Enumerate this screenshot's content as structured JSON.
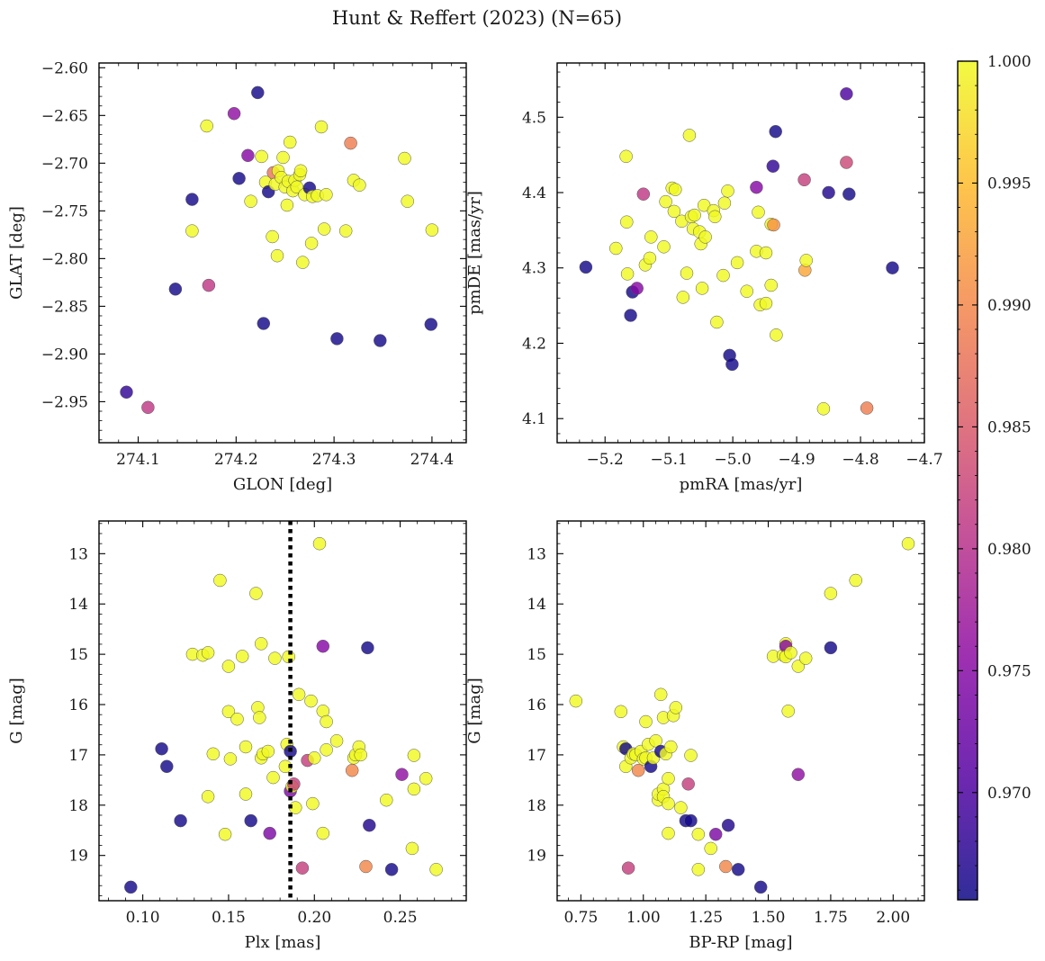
{
  "title": "Hunt & Reffert (2023) (N=65)",
  "colormap": {
    "name": "plasma",
    "min": 0.9656,
    "max": 1.0,
    "ticks": [
      "0.970",
      "0.975",
      "0.980",
      "0.985",
      "0.990",
      "0.995",
      "1.000"
    ],
    "tick_values": [
      0.97,
      0.975,
      0.98,
      0.985,
      0.99,
      0.995,
      1.0
    ]
  },
  "chart_data": [
    {
      "type": "scatter",
      "xlabel": "GLON [deg]",
      "ylabel": "GLAT [deg]",
      "xlim": [
        274.06,
        274.435
      ],
      "ylim": [
        -2.993,
        -2.595
      ],
      "xticks": [
        274.1,
        274.2,
        274.3,
        274.4
      ],
      "xtick_labels": [
        "274.1",
        "274.2",
        "274.3",
        "274.4"
      ],
      "yticks": [
        -2.6,
        -2.65,
        -2.7,
        -2.75,
        -2.8,
        -2.85,
        -2.9,
        -2.95
      ],
      "ytick_labels": [
        "−2.60",
        "−2.65",
        "−2.70",
        "−2.75",
        "−2.80",
        "−2.85",
        "−2.90",
        "−2.95"
      ],
      "points": [
        [
          274.088,
          -2.94,
          0.968
        ],
        [
          274.11,
          -2.956,
          0.981
        ],
        [
          274.138,
          -2.832,
          0.966
        ],
        [
          274.155,
          -2.738,
          0.966
        ],
        [
          274.155,
          -2.771,
          1.0
        ],
        [
          274.17,
          -2.661,
          1.0
        ],
        [
          274.172,
          -2.828,
          0.981
        ],
        [
          274.198,
          -2.648,
          0.976
        ],
        [
          274.203,
          -2.716,
          0.966
        ],
        [
          274.212,
          -2.692,
          0.975
        ],
        [
          274.215,
          -2.74,
          1.0
        ],
        [
          274.222,
          -2.626,
          0.966
        ],
        [
          274.226,
          -2.693,
          1.0
        ],
        [
          274.228,
          -2.868,
          0.966
        ],
        [
          274.23,
          -2.72,
          1.0
        ],
        [
          274.233,
          -2.73,
          0.966
        ],
        [
          274.237,
          -2.777,
          1.0
        ],
        [
          274.238,
          -2.71,
          0.988
        ],
        [
          274.24,
          -2.722,
          1.0
        ],
        [
          274.242,
          -2.797,
          1.0
        ],
        [
          274.243,
          -2.708,
          1.0
        ],
        [
          274.246,
          -2.715,
          1.0
        ],
        [
          274.248,
          -2.694,
          1.0
        ],
        [
          274.25,
          -2.725,
          1.0
        ],
        [
          274.252,
          -2.744,
          1.0
        ],
        [
          274.253,
          -2.719,
          1.0
        ],
        [
          274.255,
          -2.678,
          1.0
        ],
        [
          274.258,
          -2.729,
          1.0
        ],
        [
          274.26,
          -2.718,
          1.0
        ],
        [
          274.262,
          -2.725,
          1.0
        ],
        [
          274.265,
          -2.712,
          1.0
        ],
        [
          274.266,
          -2.708,
          1.0
        ],
        [
          274.268,
          -2.804,
          1.0
        ],
        [
          274.27,
          -2.733,
          1.0
        ],
        [
          274.275,
          -2.726,
          0.966
        ],
        [
          274.277,
          -2.784,
          1.0
        ],
        [
          274.278,
          -2.735,
          1.0
        ],
        [
          274.283,
          -2.734,
          1.0
        ],
        [
          274.287,
          -2.662,
          1.0
        ],
        [
          274.29,
          -2.769,
          1.0
        ],
        [
          274.292,
          -2.733,
          1.0
        ],
        [
          274.303,
          -2.884,
          0.966
        ],
        [
          274.312,
          -2.771,
          1.0
        ],
        [
          274.317,
          -2.679,
          0.989
        ],
        [
          274.32,
          -2.718,
          1.0
        ],
        [
          274.326,
          -2.723,
          1.0
        ],
        [
          274.347,
          -2.886,
          0.966
        ],
        [
          274.372,
          -2.695,
          1.0
        ],
        [
          274.375,
          -2.74,
          1.0
        ],
        [
          274.399,
          -2.869,
          0.966
        ],
        [
          274.4,
          -2.77,
          1.0
        ]
      ]
    },
    {
      "type": "scatter",
      "xlabel": "pmRA [mas/yr]",
      "ylabel": "pmDE [mas/yr]",
      "xlim": [
        -5.275,
        -4.7
      ],
      "ylim": [
        4.068,
        4.572
      ],
      "xticks": [
        -5.2,
        -5.1,
        -5.0,
        -4.9,
        -4.8,
        -4.7
      ],
      "xtick_labels": [
        "−5.2",
        "−5.1",
        "−5.0",
        "−4.9",
        "−4.8",
        "−4.7"
      ],
      "yticks": [
        4.1,
        4.2,
        4.3,
        4.4,
        4.5
      ],
      "ytick_labels": [
        "4.1",
        "4.2",
        "4.3",
        "4.4",
        "4.5"
      ],
      "points": [
        [
          -5.23,
          4.301,
          0.966
        ],
        [
          -5.183,
          4.326,
          1.0
        ],
        [
          -5.167,
          4.448,
          1.0
        ],
        [
          -5.166,
          4.361,
          1.0
        ],
        [
          -5.165,
          4.292,
          1.0
        ],
        [
          -5.16,
          4.237,
          0.966
        ],
        [
          -5.157,
          4.268,
          0.966
        ],
        [
          -5.15,
          4.273,
          0.975
        ],
        [
          -5.14,
          4.398,
          0.981
        ],
        [
          -5.137,
          4.304,
          1.0
        ],
        [
          -5.13,
          4.313,
          1.0
        ],
        [
          -5.128,
          4.341,
          1.0
        ],
        [
          -5.108,
          4.328,
          1.0
        ],
        [
          -5.105,
          4.388,
          1.0
        ],
        [
          -5.095,
          4.406,
          1.0
        ],
        [
          -5.092,
          4.375,
          1.0
        ],
        [
          -5.09,
          4.404,
          1.0
        ],
        [
          -5.08,
          4.362,
          1.0
        ],
        [
          -5.078,
          4.261,
          1.0
        ],
        [
          -5.072,
          4.293,
          1.0
        ],
        [
          -5.068,
          4.476,
          1.0
        ],
        [
          -5.065,
          4.368,
          1.0
        ],
        [
          -5.062,
          4.352,
          1.0
        ],
        [
          -5.06,
          4.37,
          1.0
        ],
        [
          -5.052,
          4.348,
          1.0
        ],
        [
          -5.05,
          4.332,
          1.0
        ],
        [
          -5.048,
          4.273,
          1.0
        ],
        [
          -5.045,
          4.383,
          1.0
        ],
        [
          -5.043,
          4.341,
          1.0
        ],
        [
          -5.03,
          4.376,
          1.0
        ],
        [
          -5.028,
          4.368,
          1.0
        ],
        [
          -5.025,
          4.228,
          1.0
        ],
        [
          -5.015,
          4.29,
          1.0
        ],
        [
          -5.013,
          4.386,
          1.0
        ],
        [
          -5.008,
          4.402,
          1.0
        ],
        [
          -5.005,
          4.184,
          0.966
        ],
        [
          -5.001,
          4.172,
          0.966
        ],
        [
          -4.993,
          4.307,
          1.0
        ],
        [
          -4.978,
          4.269,
          1.0
        ],
        [
          -4.963,
          4.322,
          1.0
        ],
        [
          -4.963,
          4.407,
          0.975
        ],
        [
          -4.96,
          4.374,
          1.0
        ],
        [
          -4.957,
          4.251,
          1.0
        ],
        [
          -4.948,
          4.253,
          1.0
        ],
        [
          -4.948,
          4.32,
          1.0
        ],
        [
          -4.94,
          4.277,
          1.0
        ],
        [
          -4.94,
          4.358,
          1.0
        ],
        [
          -4.937,
          4.435,
          0.968
        ],
        [
          -4.936,
          4.357,
          0.991
        ],
        [
          -4.933,
          4.481,
          0.966
        ],
        [
          -4.932,
          4.211,
          1.0
        ],
        [
          -4.888,
          4.417,
          0.982
        ],
        [
          -4.887,
          4.297,
          0.993
        ],
        [
          -4.885,
          4.31,
          1.0
        ],
        [
          -4.85,
          4.4,
          0.967
        ],
        [
          -4.858,
          4.113,
          1.0
        ],
        [
          -4.822,
          4.531,
          0.97
        ],
        [
          -4.822,
          4.44,
          0.983
        ],
        [
          -4.818,
          4.398,
          0.966
        ],
        [
          -4.79,
          4.114,
          0.989
        ],
        [
          -4.75,
          4.3,
          0.966
        ]
      ]
    },
    {
      "type": "scatter",
      "xlabel": "Plx [mas]",
      "ylabel": "G [mag]",
      "xlim": [
        0.0745,
        0.2885
      ],
      "ylim": [
        19.9,
        12.35
      ],
      "y_inverted": true,
      "xticks": [
        0.1,
        0.15,
        0.2,
        0.25
      ],
      "xtick_labels": [
        "0.10",
        "0.15",
        "0.20",
        "0.25"
      ],
      "yticks": [
        13,
        14,
        15,
        16,
        17,
        18,
        19
      ],
      "ytick_labels": [
        "13",
        "14",
        "15",
        "16",
        "17",
        "18",
        "19"
      ],
      "reference_line": {
        "axis": "x",
        "value": 0.186,
        "style": "dotted",
        "color": "#000000"
      },
      "points": [
        [
          0.093,
          19.63,
          0.966
        ],
        [
          0.111,
          16.88,
          0.966
        ],
        [
          0.114,
          17.23,
          0.966
        ],
        [
          0.122,
          18.31,
          0.966
        ],
        [
          0.129,
          15.0,
          1.0
        ],
        [
          0.135,
          15.02,
          1.0
        ],
        [
          0.138,
          14.97,
          1.0
        ],
        [
          0.138,
          17.83,
          1.0
        ],
        [
          0.141,
          16.98,
          1.0
        ],
        [
          0.145,
          13.53,
          1.0
        ],
        [
          0.148,
          18.58,
          1.0
        ],
        [
          0.15,
          16.14,
          1.0
        ],
        [
          0.15,
          15.24,
          1.0
        ],
        [
          0.151,
          17.08,
          1.0
        ],
        [
          0.155,
          16.29,
          1.0
        ],
        [
          0.158,
          15.04,
          1.0
        ],
        [
          0.16,
          16.84,
          1.0
        ],
        [
          0.16,
          17.78,
          1.0
        ],
        [
          0.163,
          18.31,
          0.966
        ],
        [
          0.166,
          13.79,
          1.0
        ],
        [
          0.167,
          16.06,
          1.0
        ],
        [
          0.168,
          16.26,
          1.0
        ],
        [
          0.169,
          14.79,
          1.0
        ],
        [
          0.169,
          17.06,
          1.0
        ],
        [
          0.17,
          16.98,
          1.0
        ],
        [
          0.173,
          16.93,
          1.0
        ],
        [
          0.174,
          18.56,
          0.974
        ],
        [
          0.176,
          17.45,
          1.0
        ],
        [
          0.177,
          15.08,
          1.0
        ],
        [
          0.183,
          17.23,
          1.0
        ],
        [
          0.184,
          16.79,
          1.0
        ],
        [
          0.185,
          15.05,
          1.0
        ],
        [
          0.186,
          17.72,
          0.974
        ],
        [
          0.186,
          16.93,
          0.966
        ],
        [
          0.187,
          17.63,
          1.0
        ],
        [
          0.188,
          17.58,
          0.982
        ],
        [
          0.189,
          18.05,
          1.0
        ],
        [
          0.191,
          15.8,
          1.0
        ],
        [
          0.193,
          19.25,
          0.982
        ],
        [
          0.196,
          17.11,
          0.982
        ],
        [
          0.198,
          15.93,
          1.0
        ],
        [
          0.199,
          17.97,
          1.0
        ],
        [
          0.2,
          17.06,
          1.0
        ],
        [
          0.203,
          12.8,
          1.0
        ],
        [
          0.205,
          14.84,
          0.975
        ],
        [
          0.205,
          16.13,
          1.0
        ],
        [
          0.205,
          18.56,
          1.0
        ],
        [
          0.207,
          16.34,
          1.0
        ],
        [
          0.207,
          16.9,
          1.0
        ],
        [
          0.213,
          16.72,
          1.0
        ],
        [
          0.222,
          17.31,
          0.99
        ],
        [
          0.223,
          17.06,
          1.0
        ],
        [
          0.224,
          17.0,
          1.0
        ],
        [
          0.226,
          16.84,
          1.0
        ],
        [
          0.227,
          17.0,
          1.0
        ],
        [
          0.23,
          19.22,
          0.99
        ],
        [
          0.231,
          14.87,
          0.966
        ],
        [
          0.232,
          18.4,
          0.967
        ],
        [
          0.242,
          17.9,
          1.0
        ],
        [
          0.245,
          19.28,
          0.966
        ],
        [
          0.251,
          17.39,
          0.976
        ],
        [
          0.257,
          18.86,
          1.0
        ],
        [
          0.258,
          17.01,
          1.0
        ],
        [
          0.258,
          17.68,
          1.0
        ],
        [
          0.265,
          17.47,
          1.0
        ],
        [
          0.271,
          19.28,
          1.0
        ]
      ]
    },
    {
      "type": "scatter",
      "xlabel": "BP-RP [mag]",
      "ylabel": "G [mag]",
      "xlim": [
        0.655,
        2.125
      ],
      "ylim": [
        19.9,
        12.35
      ],
      "y_inverted": true,
      "xticks": [
        0.75,
        1.0,
        1.25,
        1.5,
        1.75,
        2.0
      ],
      "xtick_labels": [
        "0.75",
        "1.00",
        "1.25",
        "1.50",
        "1.75",
        "2.00"
      ],
      "yticks": [
        13,
        14,
        15,
        16,
        17,
        18,
        19
      ],
      "ytick_labels": [
        "13",
        "14",
        "15",
        "16",
        "17",
        "18",
        "19"
      ],
      "points": [
        [
          0.73,
          15.93,
          1.0
        ],
        [
          0.91,
          16.14,
          1.0
        ],
        [
          0.92,
          16.84,
          1.0
        ],
        [
          0.93,
          16.88,
          0.966
        ],
        [
          0.93,
          17.23,
          1.0
        ],
        [
          0.94,
          19.25,
          0.982
        ],
        [
          0.95,
          17.06,
          1.0
        ],
        [
          0.96,
          16.98,
          1.0
        ],
        [
          0.97,
          17.0,
          1.0
        ],
        [
          0.98,
          17.31,
          0.99
        ],
        [
          0.99,
          16.93,
          1.0
        ],
        [
          1.0,
          17.08,
          1.0
        ],
        [
          1.01,
          16.34,
          1.0
        ],
        [
          1.01,
          17.06,
          1.0
        ],
        [
          1.02,
          16.79,
          1.0
        ],
        [
          1.03,
          17.23,
          0.966
        ],
        [
          1.04,
          17.06,
          1.0
        ],
        [
          1.05,
          16.72,
          1.0
        ],
        [
          1.06,
          17.9,
          1.0
        ],
        [
          1.06,
          17.78,
          1.0
        ],
        [
          1.07,
          15.8,
          1.0
        ],
        [
          1.07,
          16.93,
          0.966
        ],
        [
          1.08,
          16.26,
          1.0
        ],
        [
          1.08,
          17.68,
          1.0
        ],
        [
          1.08,
          17.83,
          1.0
        ],
        [
          1.09,
          16.98,
          1.0
        ],
        [
          1.1,
          17.47,
          1.0
        ],
        [
          1.1,
          17.97,
          1.0
        ],
        [
          1.1,
          18.56,
          1.0
        ],
        [
          1.11,
          16.84,
          1.0
        ],
        [
          1.12,
          16.22,
          1.0
        ],
        [
          1.13,
          16.06,
          1.0
        ],
        [
          1.15,
          18.05,
          1.0
        ],
        [
          1.17,
          18.31,
          0.966
        ],
        [
          1.18,
          17.58,
          0.982
        ],
        [
          1.19,
          17.01,
          1.0
        ],
        [
          1.19,
          18.31,
          0.966
        ],
        [
          1.22,
          18.58,
          1.0
        ],
        [
          1.22,
          19.28,
          1.0
        ],
        [
          1.27,
          18.86,
          1.0
        ],
        [
          1.29,
          18.58,
          0.974
        ],
        [
          1.33,
          19.22,
          0.99
        ],
        [
          1.34,
          18.4,
          0.967
        ],
        [
          1.38,
          19.28,
          0.966
        ],
        [
          1.47,
          19.63,
          0.966
        ],
        [
          1.52,
          15.04,
          1.0
        ],
        [
          1.56,
          15.02,
          1.0
        ],
        [
          1.57,
          14.79,
          1.0
        ],
        [
          1.57,
          14.84,
          0.975
        ],
        [
          1.57,
          15.05,
          1.0
        ],
        [
          1.58,
          16.13,
          1.0
        ],
        [
          1.59,
          14.97,
          1.0
        ],
        [
          1.62,
          17.39,
          0.976
        ],
        [
          1.62,
          15.24,
          1.0
        ],
        [
          1.65,
          15.08,
          1.0
        ],
        [
          1.75,
          13.79,
          1.0
        ],
        [
          1.75,
          14.87,
          0.966
        ],
        [
          1.85,
          13.53,
          1.0
        ],
        [
          2.06,
          12.8,
          1.0
        ]
      ]
    }
  ]
}
